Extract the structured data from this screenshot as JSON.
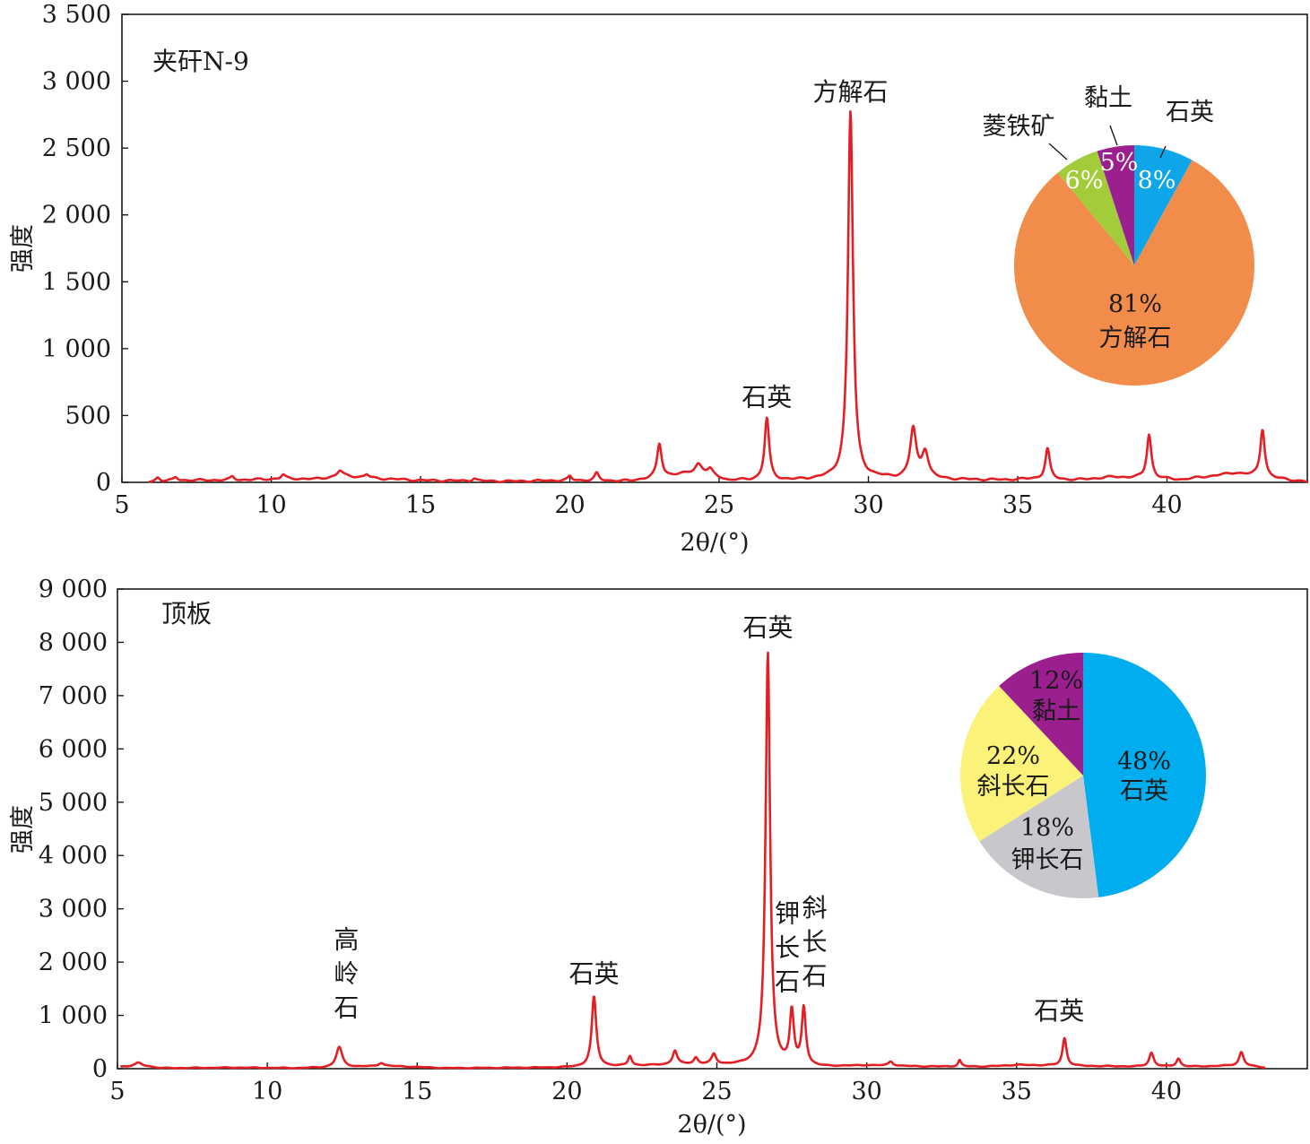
{
  "chart_data": [
    {
      "type": "line",
      "panel_label": "夹矸N-9",
      "xlabel": "2θ/(°)",
      "ylabel": "强度",
      "xlim": [
        5,
        44.7
      ],
      "ylim": [
        0,
        3500
      ],
      "xticks": [
        5,
        10,
        15,
        20,
        25,
        30,
        35,
        40
      ],
      "xtick_labels": [
        "5",
        "10",
        "15",
        "20",
        "25",
        "30",
        "35",
        "40"
      ],
      "yticks": [
        0,
        500,
        1000,
        1500,
        2000,
        2500,
        3000,
        3500
      ],
      "ytick_labels": [
        "0",
        "500",
        "1 000",
        "1 500",
        "2 000",
        "2 500",
        "3 000",
        "3 500"
      ],
      "grid": false,
      "line_color": "#e31e24",
      "x_range": [
        5.9,
        44.7
      ],
      "baseline": [
        [
          5.9,
          5
        ],
        [
          7,
          15
        ],
        [
          9,
          18
        ],
        [
          10.5,
          28
        ],
        [
          11.5,
          25
        ],
        [
          12.4,
          50
        ],
        [
          13.5,
          30
        ],
        [
          15,
          15
        ],
        [
          18,
          8
        ],
        [
          20,
          15
        ],
        [
          22,
          10
        ],
        [
          24.4,
          80
        ],
        [
          25.3,
          15
        ],
        [
          27.5,
          15
        ],
        [
          28.5,
          25
        ],
        [
          30.5,
          30
        ],
        [
          33,
          20
        ],
        [
          34.5,
          18
        ],
        [
          35.5,
          25
        ],
        [
          37,
          18
        ],
        [
          38.2,
          40
        ],
        [
          40.5,
          20
        ],
        [
          42.3,
          70
        ],
        [
          43.5,
          30
        ],
        [
          44.7,
          5
        ]
      ],
      "peaks": [
        {
          "x": 6.2,
          "y": 30,
          "w": 0.08
        },
        {
          "x": 6.8,
          "y": 25,
          "w": 0.08
        },
        {
          "x": 8.7,
          "y": 25,
          "w": 0.08
        },
        {
          "x": 10.4,
          "y": 30,
          "w": 0.08
        },
        {
          "x": 12.3,
          "y": 40,
          "w": 0.1
        },
        {
          "x": 13.2,
          "y": 25,
          "w": 0.08
        },
        {
          "x": 16.8,
          "y": 20,
          "w": 0.08
        },
        {
          "x": 20.0,
          "y": 30,
          "w": 0.07
        },
        {
          "x": 20.9,
          "y": 55,
          "w": 0.08
        },
        {
          "x": 23.0,
          "y": 250,
          "w": 0.09
        },
        {
          "x": 24.3,
          "y": 60,
          "w": 0.12
        },
        {
          "x": 24.7,
          "y": 40,
          "w": 0.1
        },
        {
          "x": 26.6,
          "y": 465,
          "w": 0.09
        },
        {
          "x": 29.4,
          "y": 2750,
          "w": 0.1
        },
        {
          "x": 31.5,
          "y": 370,
          "w": 0.12
        },
        {
          "x": 31.9,
          "y": 200,
          "w": 0.13
        },
        {
          "x": 36.0,
          "y": 230,
          "w": 0.09
        },
        {
          "x": 39.4,
          "y": 330,
          "w": 0.09
        },
        {
          "x": 43.2,
          "y": 360,
          "w": 0.09
        }
      ],
      "annotations": [
        {
          "text": "方解石",
          "x": 29.4,
          "y": 2750
        },
        {
          "text": "石英",
          "x": 26.6,
          "y": 465
        }
      ],
      "pie": {
        "type": "pie",
        "slices": [
          {
            "label": "石英",
            "value": 8,
            "value_label": "8%",
            "color": "#0ea5e9"
          },
          {
            "label": "方解石",
            "value": 81,
            "value_label": "81%",
            "color": "#f28c4a"
          },
          {
            "label": "菱铁矿",
            "value": 6,
            "value_label": "6%",
            "color": "#a3cc3a"
          },
          {
            "label": "黏土",
            "value": 5,
            "value_label": "5%",
            "color": "#9b1f8f"
          }
        ]
      }
    },
    {
      "type": "line",
      "panel_label": "顶板",
      "xlabel": "2θ/(°)",
      "ylabel": "强度",
      "xlim": [
        5,
        44.7
      ],
      "ylim": [
        0,
        9000
      ],
      "xticks": [
        5,
        10,
        15,
        20,
        25,
        30,
        35,
        40
      ],
      "xtick_labels": [
        "5",
        "10",
        "15",
        "20",
        "25",
        "30",
        "35",
        "40"
      ],
      "yticks": [
        0,
        1000,
        2000,
        3000,
        4000,
        5000,
        6000,
        7000,
        8000,
        9000
      ],
      "ytick_labels": [
        "0",
        "1 000",
        "2 000",
        "3 000",
        "4 000",
        "5 000",
        "6 000",
        "7 000",
        "8 000",
        "9 000"
      ],
      "grid": false,
      "line_color": "#e31e24",
      "x_range": [
        5.1,
        43.3
      ],
      "baseline": [
        [
          5.1,
          40
        ],
        [
          6,
          40
        ],
        [
          6.5,
          10
        ],
        [
          9,
          20
        ],
        [
          11,
          10
        ],
        [
          12,
          20
        ],
        [
          14,
          50
        ],
        [
          16,
          10
        ],
        [
          19.5,
          20
        ],
        [
          22,
          50
        ],
        [
          24,
          80
        ],
        [
          26,
          60
        ],
        [
          28.5,
          30
        ],
        [
          30,
          60
        ],
        [
          32,
          40
        ],
        [
          34,
          40
        ],
        [
          35,
          70
        ],
        [
          37,
          50
        ],
        [
          39,
          40
        ],
        [
          41,
          40
        ],
        [
          42.5,
          60
        ],
        [
          43.3,
          20
        ]
      ],
      "peaks": [
        {
          "x": 5.7,
          "y": 70,
          "w": 0.15
        },
        {
          "x": 12.4,
          "y": 380,
          "w": 0.12
        },
        {
          "x": 13.8,
          "y": 60,
          "w": 0.1
        },
        {
          "x": 20.9,
          "y": 1320,
          "w": 0.09
        },
        {
          "x": 22.1,
          "y": 180,
          "w": 0.07
        },
        {
          "x": 23.6,
          "y": 260,
          "w": 0.09
        },
        {
          "x": 24.3,
          "y": 120,
          "w": 0.08
        },
        {
          "x": 24.9,
          "y": 190,
          "w": 0.09
        },
        {
          "x": 26.7,
          "y": 7750,
          "w": 0.09
        },
        {
          "x": 27.5,
          "y": 1000,
          "w": 0.08
        },
        {
          "x": 27.9,
          "y": 1080,
          "w": 0.08
        },
        {
          "x": 30.8,
          "y": 80,
          "w": 0.09
        },
        {
          "x": 33.1,
          "y": 120,
          "w": 0.06
        },
        {
          "x": 36.6,
          "y": 520,
          "w": 0.08
        },
        {
          "x": 39.5,
          "y": 260,
          "w": 0.09
        },
        {
          "x": 40.4,
          "y": 150,
          "w": 0.08
        },
        {
          "x": 42.5,
          "y": 250,
          "w": 0.09
        }
      ],
      "annotations": [
        {
          "text": "石英",
          "x": 26.7,
          "y": 7750
        },
        {
          "text": "石英",
          "x": 20.9,
          "y": 1320
        },
        {
          "text": "石英",
          "x": 36.6,
          "y": 520
        },
        {
          "text": "高岭石",
          "x": 12.4,
          "y": 380,
          "vertical": true
        },
        {
          "text": "钾长石",
          "x": 27.5,
          "y": 1000,
          "vertical": true
        },
        {
          "text": "斜长石",
          "x": 27.9,
          "y": 1080,
          "vertical": true
        }
      ],
      "pie": {
        "type": "pie",
        "slices": [
          {
            "label": "石英",
            "value": 48,
            "value_label": "48%",
            "color": "#00aeef"
          },
          {
            "label": "钾长石",
            "value": 18,
            "value_label": "18%",
            "color": "#c8c8cc"
          },
          {
            "label": "斜长石",
            "value": 22,
            "value_label": "22%",
            "color": "#fbf27a"
          },
          {
            "label": "黏土",
            "value": 12,
            "value_label": "12%",
            "color": "#9b1f8f"
          }
        ]
      }
    }
  ]
}
